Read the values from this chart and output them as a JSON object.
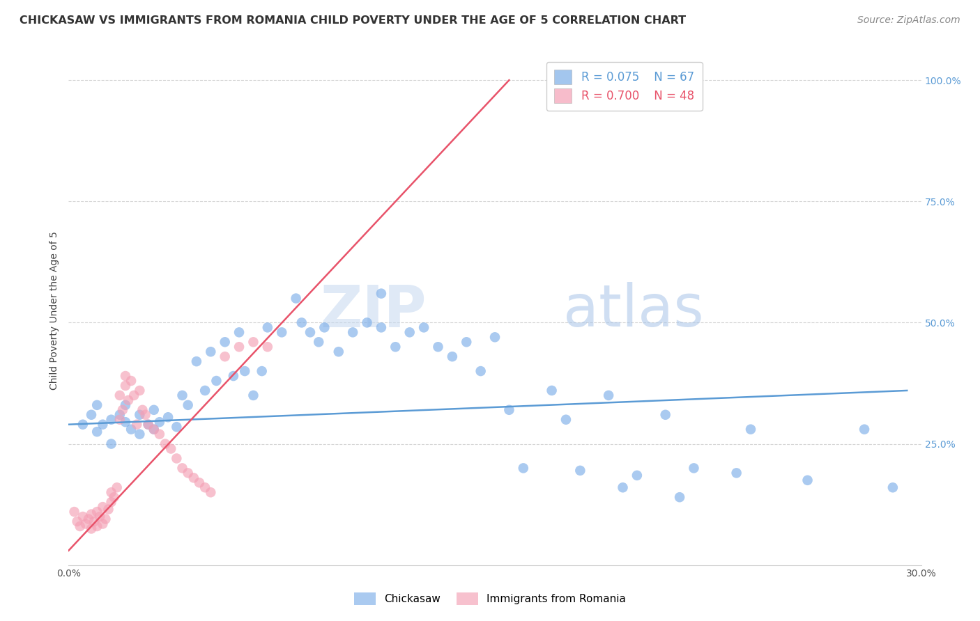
{
  "title": "CHICKASAW VS IMMIGRANTS FROM ROMANIA CHILD POVERTY UNDER THE AGE OF 5 CORRELATION CHART",
  "source": "Source: ZipAtlas.com",
  "ylabel_label": "Child Poverty Under the Age of 5",
  "legend_labels": [
    "Chickasaw",
    "Immigrants from Romania"
  ],
  "blue_color": "#7daee8",
  "pink_color": "#f4a0b5",
  "blue_line_color": "#5b9bd5",
  "pink_line_color": "#e8536a",
  "watermark_zip": "ZIP",
  "watermark_atlas": "atlas",
  "x_min": 0.0,
  "x_max": 0.3,
  "y_min": 0.0,
  "y_max": 1.05,
  "blue_scatter_x": [
    0.005,
    0.008,
    0.01,
    0.01,
    0.012,
    0.015,
    0.015,
    0.018,
    0.02,
    0.02,
    0.022,
    0.025,
    0.025,
    0.028,
    0.03,
    0.03,
    0.032,
    0.035,
    0.038,
    0.04,
    0.042,
    0.045,
    0.048,
    0.05,
    0.052,
    0.055,
    0.058,
    0.06,
    0.062,
    0.065,
    0.068,
    0.07,
    0.075,
    0.08,
    0.082,
    0.085,
    0.088,
    0.09,
    0.095,
    0.1,
    0.105,
    0.11,
    0.115,
    0.12,
    0.125,
    0.13,
    0.135,
    0.14,
    0.145,
    0.15,
    0.16,
    0.17,
    0.18,
    0.19,
    0.2,
    0.21,
    0.22,
    0.24,
    0.26,
    0.28,
    0.29,
    0.11,
    0.155,
    0.175,
    0.195,
    0.215,
    0.235
  ],
  "blue_scatter_y": [
    0.29,
    0.31,
    0.275,
    0.33,
    0.29,
    0.3,
    0.25,
    0.31,
    0.295,
    0.33,
    0.28,
    0.31,
    0.27,
    0.29,
    0.28,
    0.32,
    0.295,
    0.305,
    0.285,
    0.35,
    0.33,
    0.42,
    0.36,
    0.44,
    0.38,
    0.46,
    0.39,
    0.48,
    0.4,
    0.35,
    0.4,
    0.49,
    0.48,
    0.55,
    0.5,
    0.48,
    0.46,
    0.49,
    0.44,
    0.48,
    0.5,
    0.49,
    0.45,
    0.48,
    0.49,
    0.45,
    0.43,
    0.46,
    0.4,
    0.47,
    0.2,
    0.36,
    0.195,
    0.35,
    0.185,
    0.31,
    0.2,
    0.28,
    0.175,
    0.28,
    0.16,
    0.56,
    0.32,
    0.3,
    0.16,
    0.14,
    0.19
  ],
  "pink_scatter_x": [
    0.002,
    0.003,
    0.004,
    0.005,
    0.006,
    0.007,
    0.008,
    0.008,
    0.009,
    0.01,
    0.01,
    0.011,
    0.012,
    0.012,
    0.013,
    0.014,
    0.015,
    0.015,
    0.016,
    0.017,
    0.018,
    0.018,
    0.019,
    0.02,
    0.02,
    0.021,
    0.022,
    0.023,
    0.024,
    0.025,
    0.026,
    0.027,
    0.028,
    0.03,
    0.032,
    0.034,
    0.036,
    0.038,
    0.04,
    0.042,
    0.044,
    0.046,
    0.048,
    0.05,
    0.055,
    0.06,
    0.065,
    0.07
  ],
  "pink_scatter_y": [
    0.11,
    0.09,
    0.08,
    0.1,
    0.085,
    0.095,
    0.075,
    0.105,
    0.09,
    0.08,
    0.11,
    0.1,
    0.085,
    0.12,
    0.095,
    0.115,
    0.13,
    0.15,
    0.14,
    0.16,
    0.3,
    0.35,
    0.32,
    0.37,
    0.39,
    0.34,
    0.38,
    0.35,
    0.29,
    0.36,
    0.32,
    0.31,
    0.29,
    0.28,
    0.27,
    0.25,
    0.24,
    0.22,
    0.2,
    0.19,
    0.18,
    0.17,
    0.16,
    0.15,
    0.43,
    0.45,
    0.46,
    0.45
  ],
  "blue_trend_x": [
    0.0,
    0.295
  ],
  "blue_trend_y": [
    0.29,
    0.36
  ],
  "pink_trend_x": [
    0.0,
    0.155
  ],
  "pink_trend_y": [
    0.03,
    1.0
  ],
  "grid_color": "#d5d5d5",
  "background_color": "#ffffff",
  "title_fontsize": 11.5,
  "axis_label_fontsize": 10,
  "tick_fontsize": 10,
  "source_fontsize": 10
}
